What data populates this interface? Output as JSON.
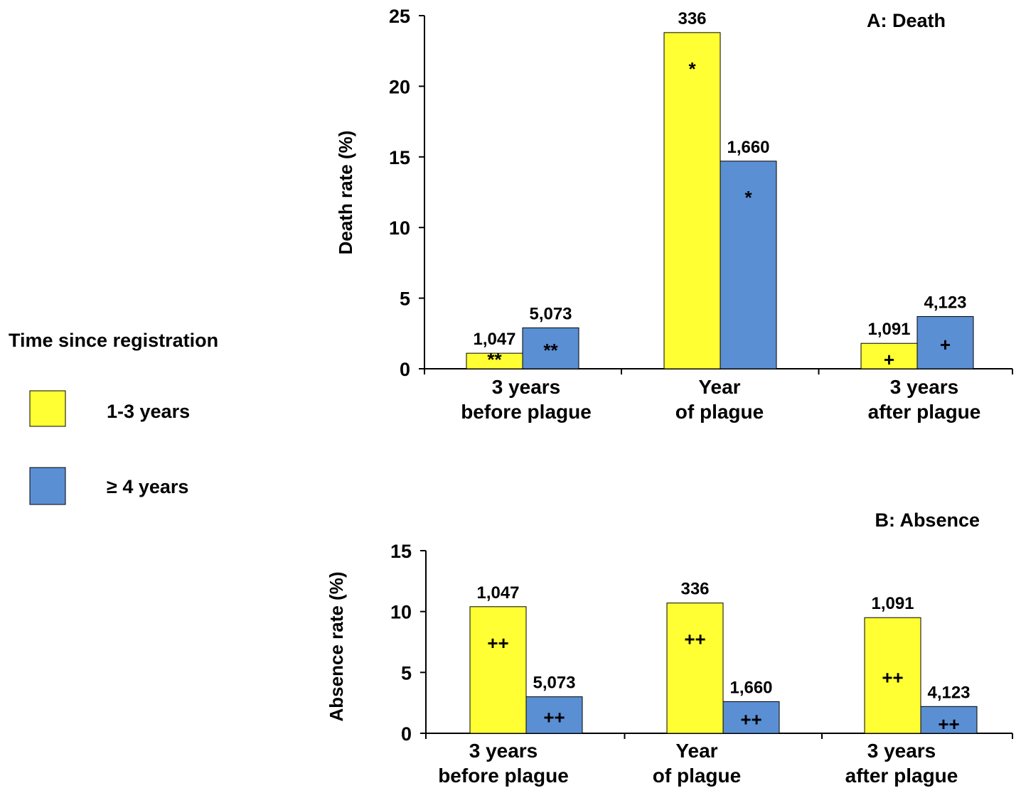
{
  "legend": {
    "title": "Time since registration",
    "items": [
      {
        "label": "1-3 years",
        "color": "#FFFF33"
      },
      {
        "label": "≥ 4 years",
        "color": "#5B8FD4"
      }
    ]
  },
  "chart_data": [
    {
      "type": "bar",
      "title": "A: Death",
      "ylabel": "Death rate (%)",
      "ylim": [
        0,
        25
      ],
      "yticks": [
        0,
        5,
        10,
        15,
        20,
        25
      ],
      "categories": [
        [
          "3 years",
          "before plague"
        ],
        [
          "Year",
          "of plague"
        ],
        [
          "3 years",
          "after plague"
        ]
      ],
      "series": [
        {
          "name": "1-3 years",
          "values": [
            1.1,
            23.8,
            1.8
          ],
          "counts": [
            "1,047",
            "336",
            "1,091"
          ],
          "marks": [
            "**",
            "*",
            "+"
          ]
        },
        {
          "name": "≥ 4 years",
          "values": [
            2.9,
            14.7,
            3.7
          ],
          "counts": [
            "5,073",
            "1,660",
            "4,123"
          ],
          "marks": [
            "**",
            "*",
            "+"
          ]
        }
      ]
    },
    {
      "type": "bar",
      "title": "B: Absence",
      "ylabel": "Absence rate (%)",
      "ylim": [
        0,
        15
      ],
      "yticks": [
        0,
        5,
        10,
        15
      ],
      "categories": [
        [
          "3 years",
          "before plague"
        ],
        [
          "Year",
          "of plague"
        ],
        [
          "3 years",
          "after plague"
        ]
      ],
      "series": [
        {
          "name": "1-3 years",
          "values": [
            10.4,
            10.7,
            9.5
          ],
          "counts": [
            "1,047",
            "336",
            "1,091"
          ],
          "marks": [
            "++",
            "++",
            "++"
          ]
        },
        {
          "name": "≥ 4 years",
          "values": [
            3.0,
            2.6,
            2.2
          ],
          "counts": [
            "5,073",
            "1,660",
            "4,123"
          ],
          "marks": [
            "++",
            "++",
            "++"
          ]
        }
      ]
    }
  ]
}
